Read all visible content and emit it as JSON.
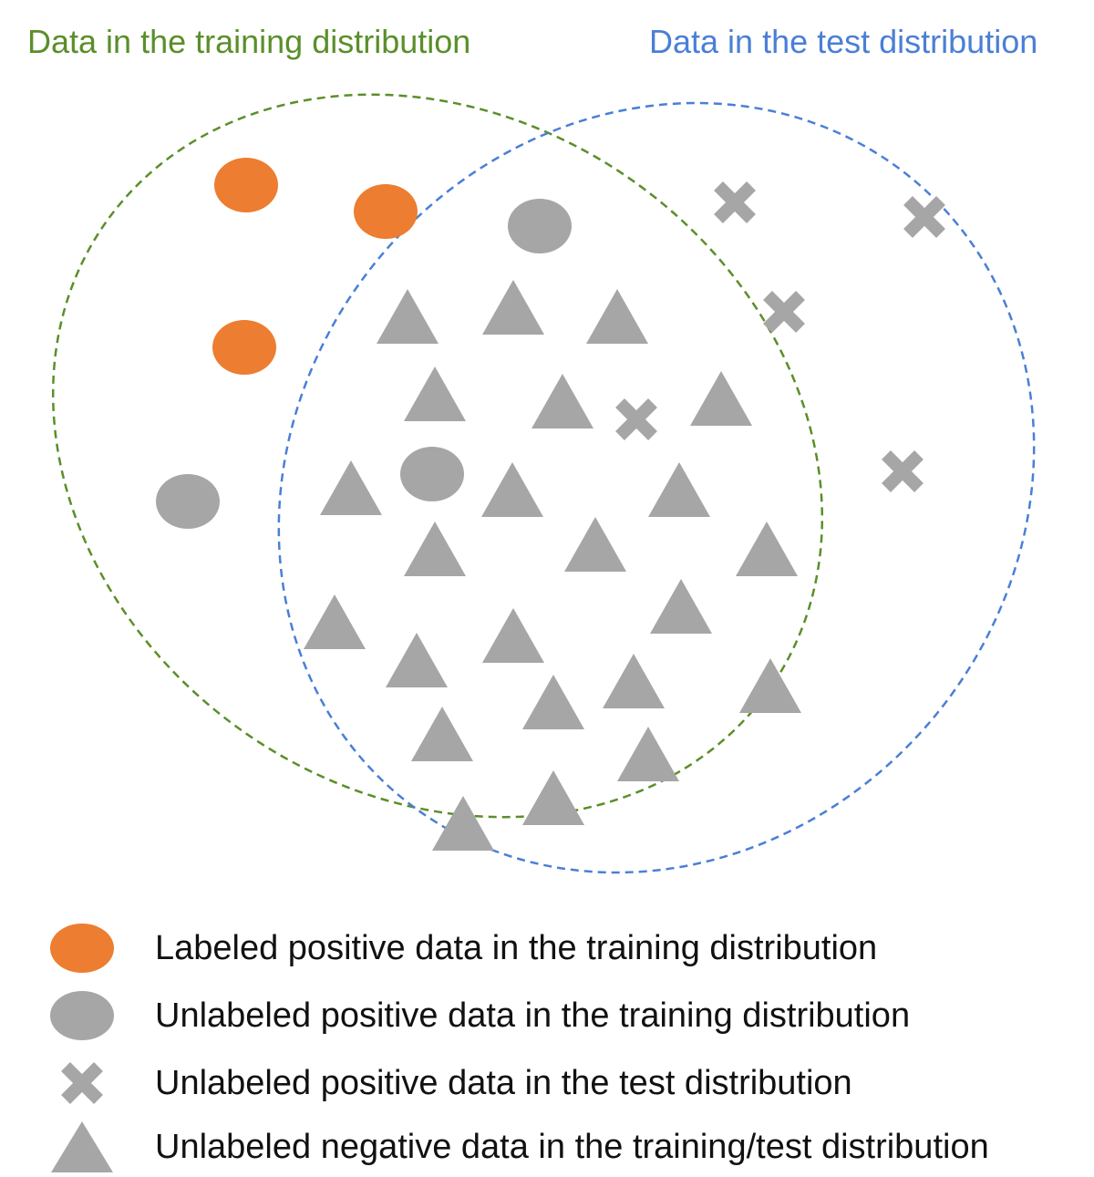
{
  "headers": {
    "training": "Data in the training distribution",
    "test": "Data in the test distribution"
  },
  "colors": {
    "training": "#5a8f29",
    "test": "#4a7fd6",
    "positive_labeled": "#ed7d31",
    "gray": "#a6a6a6"
  },
  "legend": [
    {
      "icon": "orange-circle",
      "label": "Labeled positive data in the training distribution"
    },
    {
      "icon": "gray-circle",
      "label": "Unlabeled positive data in the training distribution"
    },
    {
      "icon": "gray-cross",
      "label": "Unlabeled positive data in the test distribution"
    },
    {
      "icon": "gray-triangle",
      "label": "Unlabeled negative data in the training/test distribution"
    }
  ]
}
